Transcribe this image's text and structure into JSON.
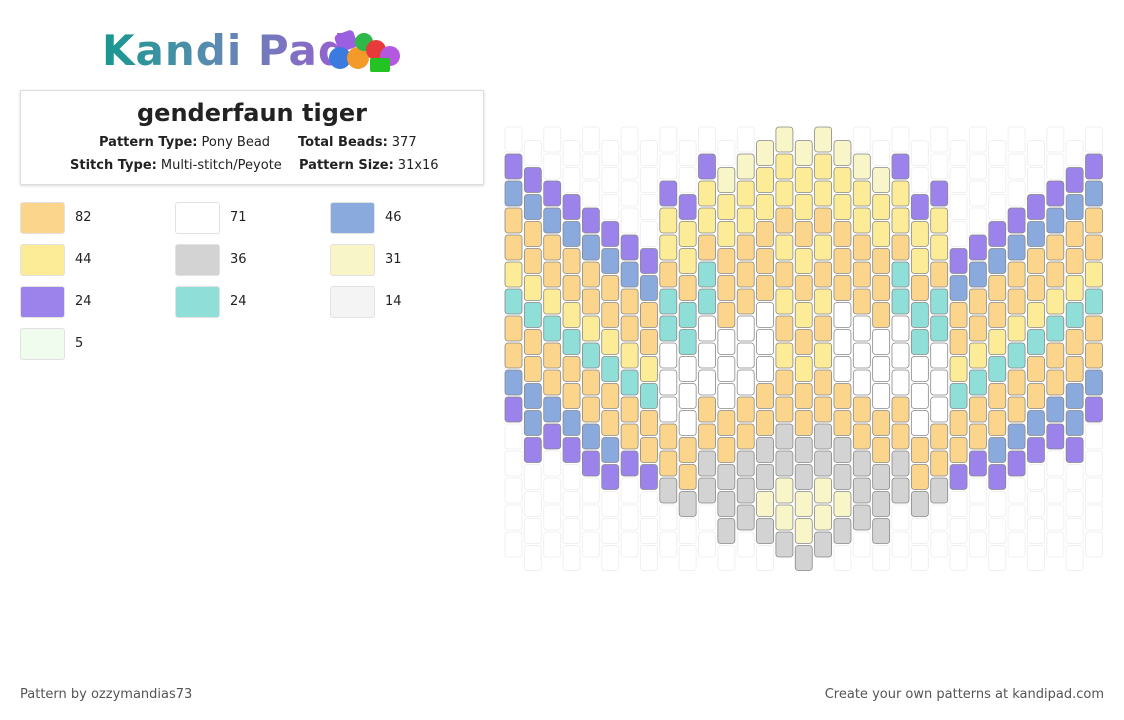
{
  "header": {
    "logo": "Kandi Pad"
  },
  "pattern": {
    "title": "genderfaun tiger",
    "info": [
      {
        "label": "Pattern Type:",
        "value": "Pony Bead"
      },
      {
        "label": "Total Beads:",
        "value": "377"
      },
      {
        "label": "Stitch Type:",
        "value": "Multi-stitch/Peyote"
      },
      {
        "label": "Pattern Size:",
        "value": "31x16"
      }
    ],
    "palette": [
      {
        "color": "#fcd58c",
        "count": "82"
      },
      {
        "color": "#ffffff",
        "count": "71"
      },
      {
        "color": "#8aa9dd",
        "count": "46"
      },
      {
        "color": "#fdec97",
        "count": "44"
      },
      {
        "color": "#d3d3d3",
        "count": "36"
      },
      {
        "color": "#f8f6c8",
        "count": "31"
      },
      {
        "color": "#9c83ec",
        "count": "24"
      },
      {
        "color": "#8fdfd8",
        "count": "24"
      },
      {
        "color": "#f4f4f4",
        "count": "14"
      },
      {
        "color": "#effcee",
        "count": "5"
      }
    ]
  },
  "footer": {
    "author": "Pattern by ozzymandias73",
    "promo": "Create your own patterns at kandipad.com"
  }
}
